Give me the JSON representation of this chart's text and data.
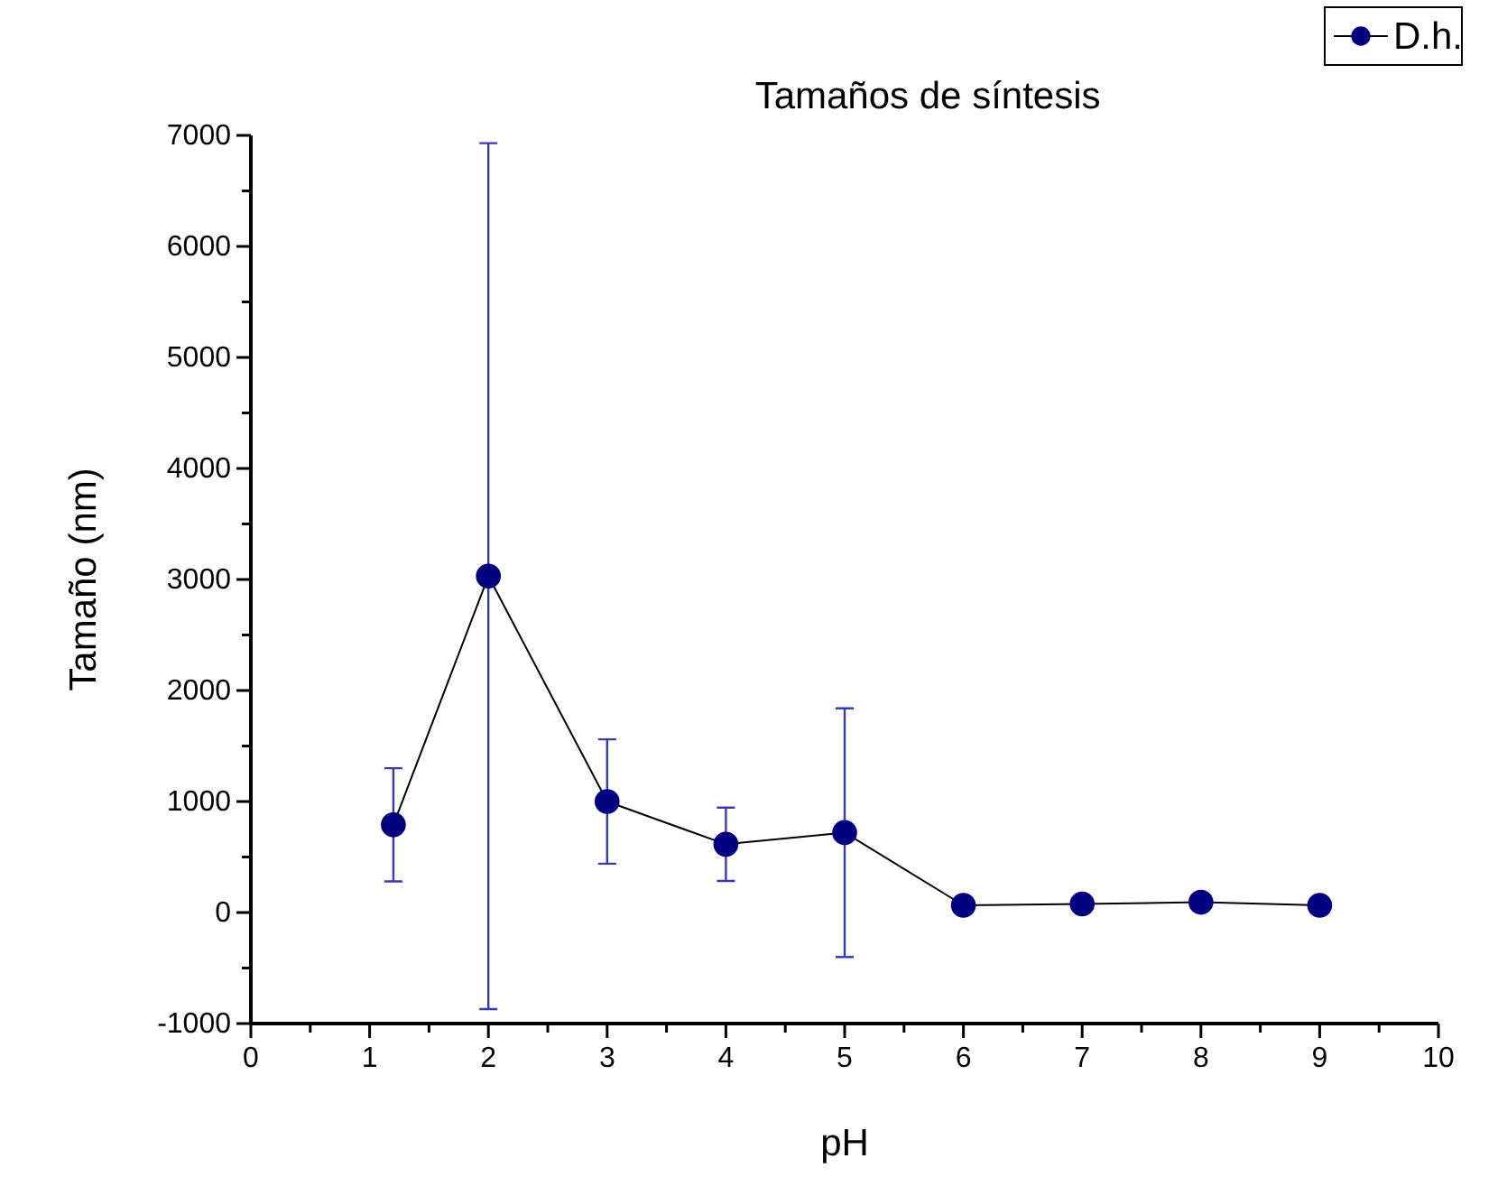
{
  "chart_data": {
    "type": "line",
    "title": "Tamaños de síntesis",
    "xlabel": "pH",
    "ylabel": "Tamaño (nm)",
    "x": [
      1.2,
      2,
      3,
      4,
      5,
      6,
      7,
      8,
      9
    ],
    "series": [
      {
        "name": "D.h.",
        "color": "#000080",
        "values": [
          790,
          3030,
          1000,
          615,
          720,
          65,
          77,
          93,
          65
        ],
        "errors": [
          510,
          3900,
          560,
          330,
          1120,
          null,
          null,
          null,
          null
        ]
      }
    ],
    "xlim": [
      0,
      10
    ],
    "ylim": [
      -1000,
      7000
    ],
    "xticks": [
      0,
      {
        "value": 0.5,
        "label": null
      },
      1,
      {
        "value": 1.5,
        "label": null
      },
      2,
      {
        "value": 2.5,
        "label": null
      },
      3,
      {
        "value": 3.5,
        "label": null
      },
      4,
      {
        "value": 4.5,
        "label": null
      },
      5,
      {
        "value": 5.5,
        "label": null
      },
      6,
      {
        "value": 6.5,
        "label": null
      },
      7,
      {
        "value": 7.5,
        "label": null
      },
      8,
      {
        "value": 8.5,
        "label": null
      },
      9,
      {
        "value": 9.5,
        "label": null
      },
      10
    ],
    "yticks": [
      -1000,
      {
        "value": -500,
        "label": null
      },
      0,
      {
        "value": 500,
        "label": null
      },
      1000,
      {
        "value": 1500,
        "label": null
      },
      2000,
      {
        "value": 2500,
        "label": null
      },
      3000,
      {
        "value": 3500,
        "label": null
      },
      4000,
      {
        "value": 4500,
        "label": null
      },
      5000,
      {
        "value": 5500,
        "label": null
      },
      6000,
      {
        "value": 6500,
        "label": null
      },
      7000
    ],
    "grid": false,
    "legend": "top right",
    "marker": "circle",
    "line_style": "solid"
  }
}
